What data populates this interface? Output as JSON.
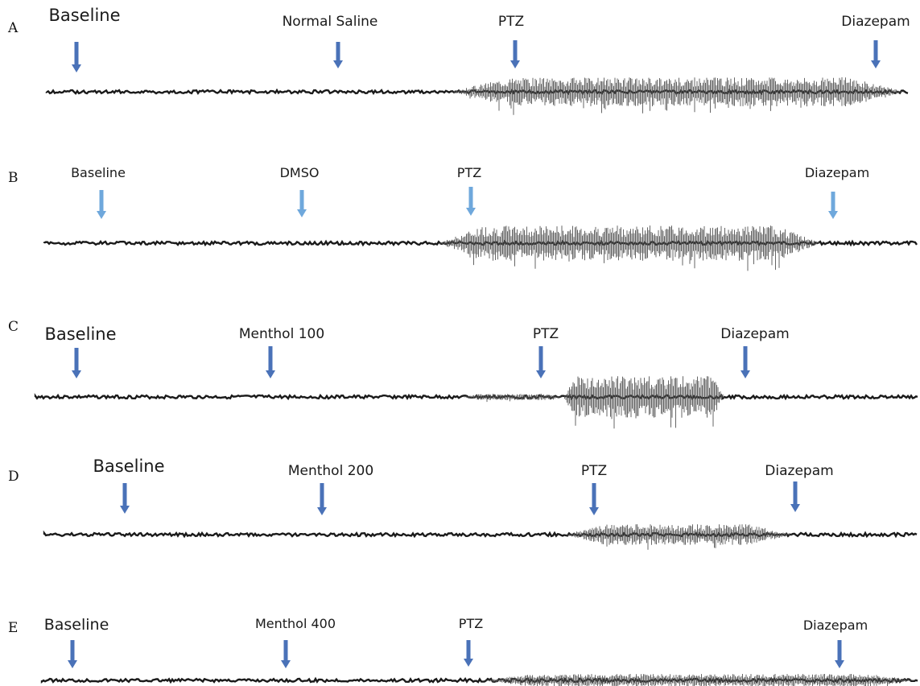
{
  "colors": {
    "arrow_dark": "#4a72b8",
    "arrow_light": "#6fa8dc",
    "trace": "#1a1a1a",
    "trace_burst": "#555555"
  },
  "icons": {
    "event_marker": "down-arrow-icon"
  },
  "panels": [
    {
      "letter": "A",
      "arrow_style": "dark",
      "events": [
        {
          "label": "Baseline"
        },
        {
          "label": "Normal Saline"
        },
        {
          "label": "PTZ"
        },
        {
          "label": "Diazepam"
        }
      ]
    },
    {
      "letter": "B",
      "arrow_style": "light",
      "events": [
        {
          "label": "Baseline"
        },
        {
          "label": "DMSO"
        },
        {
          "label": "PTZ"
        },
        {
          "label": "Diazepam"
        }
      ]
    },
    {
      "letter": "C",
      "arrow_style": "dark",
      "events": [
        {
          "label": "Baseline"
        },
        {
          "label": "Menthol 100"
        },
        {
          "label": "PTZ"
        },
        {
          "label": "Diazepam"
        }
      ]
    },
    {
      "letter": "D",
      "arrow_style": "dark",
      "events": [
        {
          "label": "Baseline"
        },
        {
          "label": "Menthol 200"
        },
        {
          "label": "PTZ"
        },
        {
          "label": "Diazepam"
        }
      ]
    },
    {
      "letter": "E",
      "arrow_style": "dark",
      "events": [
        {
          "label": "Baseline"
        },
        {
          "label": "Menthol 400"
        },
        {
          "label": "PTZ"
        },
        {
          "label": "Diazepam"
        }
      ]
    }
  ]
}
